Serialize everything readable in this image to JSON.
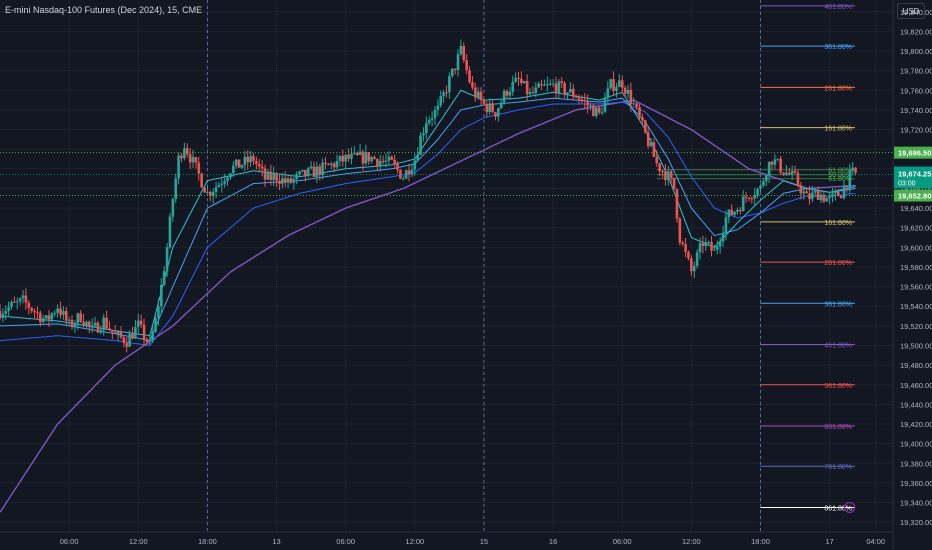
{
  "header": {
    "title": "E-mini Nasdaq-100 Futures (Dec 2024), 15, CME",
    "currency": "USD"
  },
  "colors": {
    "background": "#131722",
    "grid": "#1e222d",
    "up": "#26a69a",
    "down": "#ef5350",
    "ma_purple": "#7e57c2",
    "ma_blue1": "#2962ff",
    "ma_blue2": "#42a5f5",
    "ma_teal": "#26c6da",
    "price_green": "#089981",
    "level_green": "#4caf50"
  },
  "chart_data": {
    "type": "candlestick",
    "y_axis": {
      "ticks": [
        "19,840.00",
        "19,820.00",
        "19,800.00",
        "19,780.00",
        "19,760.00",
        "19,740.00",
        "19,720.00",
        "19,700.00",
        "19,680.00",
        "19,660.00",
        "19,640.00",
        "19,620.00",
        "19,600.00",
        "19,580.00",
        "19,560.00",
        "19,540.00",
        "19,520.00",
        "19,500.00",
        "19,480.00",
        "19,460.00",
        "19,440.00",
        "19,420.00",
        "19,400.00",
        "19,380.00",
        "19,360.00",
        "19,340.00",
        "19,320.00"
      ],
      "range": [
        19310,
        19852
      ]
    },
    "x_axis": {
      "ticks": [
        "06:00",
        "12:00",
        "18:00",
        "13",
        "06:00",
        "12:00",
        "15",
        "16",
        "06:00",
        "12:00",
        "18:00",
        "17",
        "04:00"
      ],
      "tick_times": [
        6,
        12,
        18,
        24,
        30,
        36,
        42,
        48,
        54,
        60,
        66,
        72,
        76
      ],
      "range": [
        0,
        77.5
      ]
    },
    "session_separators": [
      18,
      42,
      66
    ],
    "price_labels": [
      {
        "label": "19,696.50",
        "value": 19696.5,
        "style": "dotted-green"
      },
      {
        "label": "19,674.25",
        "value": 19674.25,
        "style": "current",
        "countdown": "03:00"
      },
      {
        "label": "19,652.80",
        "value": 19652.8,
        "style": "dotted-green"
      }
    ],
    "fib_retracement_levels": [
      {
        "label": "61.80%",
        "value": 19679
      },
      {
        "label": "50.00%",
        "value": 19674
      },
      {
        "label": "61.80%",
        "value": 19670
      }
    ],
    "fib_extension_levels": [
      {
        "label": "461.80%",
        "value": 19846,
        "color": "#7e57c2"
      },
      {
        "label": "361.80%",
        "value": 19805,
        "color": "#42a5f5"
      },
      {
        "label": "261.80%",
        "value": 19763,
        "color": "#ff7043"
      },
      {
        "label": "161.80%",
        "value": 19722,
        "color": "#d4c06a"
      },
      {
        "label": "161.80%",
        "value": 19626,
        "color": "#d4c06a"
      },
      {
        "label": "261.80%",
        "value": 19585,
        "color": "#ef5350"
      },
      {
        "label": "361.80%",
        "value": 19543,
        "color": "#42a5f5"
      },
      {
        "label": "461.80%",
        "value": 19501,
        "color": "#7e57c2"
      },
      {
        "label": "561.80%",
        "value": 19460,
        "color": "#ef5350"
      },
      {
        "label": "661.80%",
        "value": 19418,
        "color": "#ab47bc"
      },
      {
        "label": "761.80%",
        "value": 19377,
        "color": "#5c6bc0"
      },
      {
        "label": "861.80%",
        "value": 19335,
        "color": "#ffffff"
      }
    ],
    "candle_anchors": [
      [
        0,
        19535
      ],
      [
        2,
        19545
      ],
      [
        4,
        19525
      ],
      [
        5,
        19540
      ],
      [
        6,
        19520
      ],
      [
        7,
        19530
      ],
      [
        8,
        19515
      ],
      [
        9,
        19525
      ],
      [
        10,
        19510
      ],
      [
        11,
        19505
      ],
      [
        12,
        19520
      ],
      [
        13,
        19500
      ],
      [
        13.5,
        19525
      ],
      [
        14,
        19560
      ],
      [
        14.5,
        19600
      ],
      [
        15,
        19650
      ],
      [
        15.5,
        19690
      ],
      [
        16,
        19705
      ],
      [
        17,
        19680
      ],
      [
        18,
        19655
      ],
      [
        19,
        19665
      ],
      [
        20,
        19680
      ],
      [
        22,
        19690
      ],
      [
        23,
        19670
      ],
      [
        24,
        19672
      ],
      [
        25,
        19665
      ],
      [
        26,
        19672
      ],
      [
        28,
        19680
      ],
      [
        30,
        19690
      ],
      [
        32,
        19692
      ],
      [
        34,
        19685
      ],
      [
        35,
        19672
      ],
      [
        36,
        19690
      ],
      [
        36.5,
        19712
      ],
      [
        37,
        19730
      ],
      [
        38,
        19740
      ],
      [
        39,
        19770
      ],
      [
        39.5,
        19785
      ],
      [
        40,
        19800
      ],
      [
        41,
        19760
      ],
      [
        42,
        19745
      ],
      [
        43,
        19738
      ],
      [
        44,
        19760
      ],
      [
        45,
        19770
      ],
      [
        46,
        19755
      ],
      [
        47,
        19762
      ],
      [
        48,
        19765
      ],
      [
        49,
        19760
      ],
      [
        50,
        19755
      ],
      [
        51,
        19745
      ],
      [
        52,
        19735
      ],
      [
        53,
        19765
      ],
      [
        54,
        19768
      ],
      [
        55,
        19745
      ],
      [
        56,
        19715
      ],
      [
        57,
        19685
      ],
      [
        58,
        19672
      ],
      [
        58.5,
        19660
      ],
      [
        59,
        19610
      ],
      [
        60,
        19575
      ],
      [
        61,
        19605
      ],
      [
        62,
        19595
      ],
      [
        63,
        19630
      ],
      [
        64,
        19640
      ],
      [
        65,
        19655
      ],
      [
        66,
        19660
      ],
      [
        66.5,
        19680
      ],
      [
        67,
        19690
      ],
      [
        68,
        19678
      ],
      [
        69,
        19670
      ],
      [
        70,
        19650
      ],
      [
        71,
        19655
      ],
      [
        72,
        19648
      ],
      [
        73,
        19656
      ],
      [
        73.5,
        19668
      ],
      [
        74,
        19675
      ],
      [
        74.3,
        19674.25
      ]
    ],
    "moving_average_anchors": {
      "slow_purple": [
        [
          0,
          19330
        ],
        [
          5,
          19420
        ],
        [
          10,
          19480
        ],
        [
          15,
          19520
        ],
        [
          20,
          19575
        ],
        [
          25,
          19612
        ],
        [
          30,
          19640
        ],
        [
          35,
          19660
        ],
        [
          40,
          19688
        ],
        [
          45,
          19716
        ],
        [
          50,
          19740
        ],
        [
          55,
          19750
        ],
        [
          60,
          19720
        ],
        [
          65,
          19680
        ],
        [
          70,
          19660
        ],
        [
          74.3,
          19663
        ]
      ],
      "fast_teal": [
        [
          0,
          19530
        ],
        [
          5,
          19525
        ],
        [
          10,
          19515
        ],
        [
          13,
          19510
        ],
        [
          15,
          19600
        ],
        [
          18,
          19668
        ],
        [
          22,
          19678
        ],
        [
          26,
          19672
        ],
        [
          30,
          19680
        ],
        [
          34,
          19684
        ],
        [
          36,
          19690
        ],
        [
          38,
          19725
        ],
        [
          40,
          19760
        ],
        [
          42,
          19750
        ],
        [
          45,
          19752
        ],
        [
          48,
          19758
        ],
        [
          52,
          19750
        ],
        [
          54,
          19758
        ],
        [
          56,
          19720
        ],
        [
          58,
          19672
        ],
        [
          60,
          19610
        ],
        [
          62,
          19600
        ],
        [
          64,
          19625
        ],
        [
          66,
          19648
        ],
        [
          68,
          19668
        ],
        [
          70,
          19660
        ],
        [
          72,
          19656
        ],
        [
          74.3,
          19662
        ]
      ],
      "mid_blue": [
        [
          0,
          19520
        ],
        [
          5,
          19522
        ],
        [
          10,
          19512
        ],
        [
          13,
          19505
        ],
        [
          15,
          19560
        ],
        [
          18,
          19640
        ],
        [
          22,
          19665
        ],
        [
          26,
          19668
        ],
        [
          30,
          19675
        ],
        [
          34,
          19680
        ],
        [
          36,
          19685
        ],
        [
          38,
          19710
        ],
        [
          40,
          19740
        ],
        [
          42,
          19745
        ],
        [
          45,
          19748
        ],
        [
          48,
          19752
        ],
        [
          52,
          19748
        ],
        [
          54,
          19752
        ],
        [
          56,
          19728
        ],
        [
          58,
          19690
        ],
        [
          60,
          19640
        ],
        [
          62,
          19612
        ],
        [
          64,
          19618
        ],
        [
          66,
          19635
        ],
        [
          68,
          19655
        ],
        [
          70,
          19660
        ],
        [
          72,
          19656
        ],
        [
          74.3,
          19660
        ]
      ],
      "wide_blue": [
        [
          0,
          19505
        ],
        [
          5,
          19510
        ],
        [
          10,
          19505
        ],
        [
          13,
          19500
        ],
        [
          15,
          19530
        ],
        [
          18,
          19600
        ],
        [
          22,
          19640
        ],
        [
          26,
          19655
        ],
        [
          30,
          19665
        ],
        [
          34,
          19672
        ],
        [
          36,
          19676
        ],
        [
          38,
          19695
        ],
        [
          40,
          19720
        ],
        [
          42,
          19732
        ],
        [
          45,
          19740
        ],
        [
          48,
          19746
        ],
        [
          52,
          19746
        ],
        [
          54,
          19748
        ],
        [
          56,
          19738
        ],
        [
          58,
          19712
        ],
        [
          60,
          19672
        ],
        [
          62,
          19640
        ],
        [
          64,
          19630
        ],
        [
          66,
          19635
        ],
        [
          68,
          19645
        ],
        [
          70,
          19652
        ],
        [
          72,
          19652
        ],
        [
          74.3,
          19655
        ]
      ]
    },
    "xlabel": "",
    "ylabel": "",
    "grid": true
  }
}
